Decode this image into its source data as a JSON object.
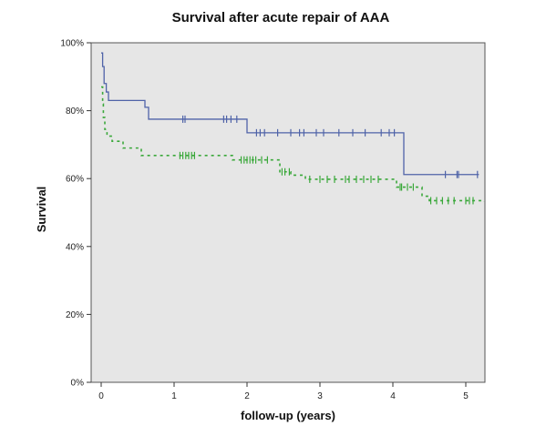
{
  "chart_data": {
    "type": "line",
    "title": "Survival after acute repair of AAA",
    "xlabel": "follow-up (years)",
    "ylabel": "Survival",
    "xlim": [
      -0.05,
      5.25
    ],
    "ylim": [
      0,
      1.0
    ],
    "x_ticks": [
      0,
      1,
      2,
      3,
      4,
      5
    ],
    "x_tick_labels": [
      "0",
      "1",
      "2",
      "3",
      "4",
      "5"
    ],
    "y_ticks": [
      0,
      0.2,
      0.4,
      0.6,
      0.8,
      1.0
    ],
    "y_tick_labels": [
      "0%",
      "20%",
      "40%",
      "60%",
      "80%",
      "100%"
    ],
    "grid": false,
    "plot_background": "#e6e6e6",
    "series": [
      {
        "color": "#4f63a8",
        "line_style": "solid",
        "step_x": [
          0,
          0.02,
          0.04,
          0.07,
          0.1,
          0.6,
          0.65,
          1.95,
          2.0,
          4.1,
          4.15,
          5.18
        ],
        "step_y": [
          0.97,
          0.93,
          0.88,
          0.855,
          0.83,
          0.81,
          0.775,
          0.775,
          0.735,
          0.735,
          0.612,
          0.612
        ],
        "censor_x": [
          1.12,
          1.15,
          1.68,
          1.72,
          1.78,
          1.86,
          2.13,
          2.18,
          2.24,
          2.42,
          2.6,
          2.72,
          2.78,
          2.95,
          3.05,
          3.26,
          3.45,
          3.62,
          3.84,
          3.95,
          4.02,
          4.72,
          4.88,
          4.9,
          5.16
        ]
      },
      {
        "color": "#3aa83a",
        "line_style": "dashed",
        "step_x": [
          0,
          0.02,
          0.03,
          0.05,
          0.08,
          0.15,
          0.3,
          0.55,
          1.8,
          2.45,
          2.6,
          2.8,
          4.05,
          4.4,
          4.5,
          5.25
        ],
        "step_y": [
          0.87,
          0.82,
          0.78,
          0.745,
          0.725,
          0.71,
          0.69,
          0.668,
          0.655,
          0.62,
          0.61,
          0.598,
          0.575,
          0.548,
          0.535,
          0.532
        ],
        "censor_x": [
          1.08,
          1.12,
          1.16,
          1.2,
          1.24,
          1.28,
          1.92,
          1.96,
          2.0,
          2.04,
          2.08,
          2.12,
          2.2,
          2.28,
          2.48,
          2.52,
          2.58,
          2.86,
          3.0,
          3.1,
          3.2,
          3.35,
          3.4,
          3.5,
          3.6,
          3.7,
          3.8,
          4.1,
          4.12,
          4.2,
          4.28,
          4.52,
          4.6,
          4.68,
          4.76,
          4.84,
          5.0,
          5.05,
          5.1
        ]
      }
    ]
  }
}
